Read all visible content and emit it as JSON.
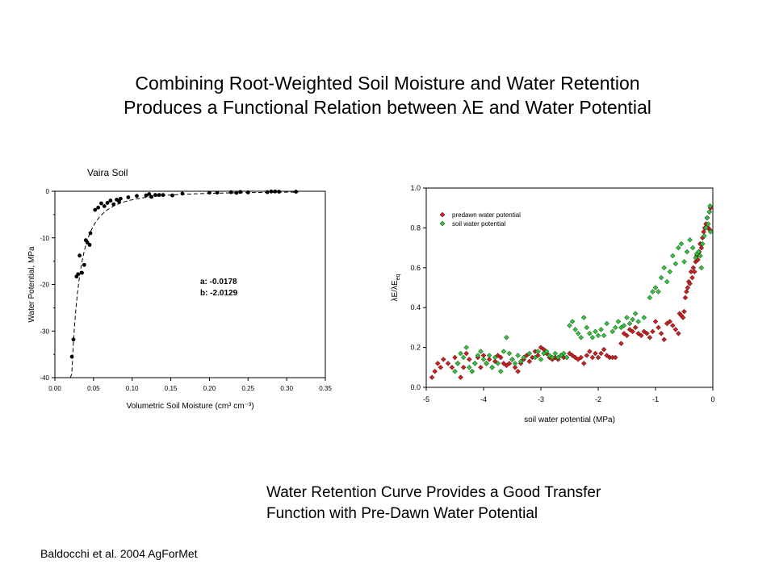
{
  "title": {
    "line1": "Combining Root-Weighted Soil Moisture and Water Retention",
    "line2": "Produces a Functional Relation between λE and Water Potential"
  },
  "subtitle": {
    "line1": "Water Retention Curve Provides a Good Transfer",
    "line2": "Function with Pre-Dawn Water Potential"
  },
  "citation": "Baldocchi et al. 2004 AgForMet",
  "colors": {
    "predawn": "#cc1f1f",
    "soil": "#2fc23a",
    "marker_edge": "#000000"
  },
  "chart_data": [
    {
      "type": "scatter",
      "title": "Vaira Soil",
      "xlabel_html": "Volumetric Soil Moisture (cm³ cm⁻³)",
      "ylabel": "Water Potential, MPa",
      "xlim": [
        0,
        0.35
      ],
      "ylim": [
        -40,
        0
      ],
      "xticks": [
        "0.00",
        "0.05",
        "0.10",
        "0.15",
        "0.20",
        "0.25",
        "0.30",
        "0.35"
      ],
      "yticks": [
        "0",
        "-10",
        "-20",
        "-30",
        "-40"
      ],
      "annotation": {
        "a": "a:  -0.0178",
        "b": "b:  -2.0129"
      },
      "fit": {
        "a": -0.0178,
        "b": -2.0129,
        "style": "dashed"
      },
      "points": [
        [
          0.022,
          -35.5
        ],
        [
          0.024,
          -31.8
        ],
        [
          0.028,
          -18.3
        ],
        [
          0.03,
          -17.8
        ],
        [
          0.032,
          -13.8
        ],
        [
          0.035,
          -17.5
        ],
        [
          0.038,
          -15.8
        ],
        [
          0.04,
          -10.5
        ],
        [
          0.042,
          -11.0
        ],
        [
          0.045,
          -11.5
        ],
        [
          0.046,
          -9.0
        ],
        [
          0.052,
          -4.0
        ],
        [
          0.056,
          -3.5
        ],
        [
          0.06,
          -2.6
        ],
        [
          0.064,
          -3.2
        ],
        [
          0.068,
          -2.5
        ],
        [
          0.072,
          -2.0
        ],
        [
          0.076,
          -2.8
        ],
        [
          0.08,
          -1.8
        ],
        [
          0.083,
          -2.2
        ],
        [
          0.085,
          -1.6
        ],
        [
          0.095,
          -1.3
        ],
        [
          0.106,
          -1.0
        ],
        [
          0.118,
          -0.9
        ],
        [
          0.122,
          -0.6
        ],
        [
          0.125,
          -1.2
        ],
        [
          0.13,
          -0.8
        ],
        [
          0.135,
          -0.8
        ],
        [
          0.14,
          -0.8
        ],
        [
          0.152,
          -0.9
        ],
        [
          0.165,
          -0.5
        ],
        [
          0.2,
          -0.3
        ],
        [
          0.21,
          -0.3
        ],
        [
          0.228,
          -0.2
        ],
        [
          0.235,
          -0.35
        ],
        [
          0.24,
          -0.15
        ],
        [
          0.25,
          -0.25
        ],
        [
          0.275,
          -0.2
        ],
        [
          0.28,
          -0.05
        ],
        [
          0.285,
          -0.05
        ],
        [
          0.29,
          -0.1
        ],
        [
          0.312,
          -0.1
        ]
      ]
    },
    {
      "type": "scatter",
      "ylabel": "λE/λE_eq",
      "xlabel": "soil water potential (MPa)",
      "xlim": [
        -5,
        0
      ],
      "ylim": [
        0,
        1.0
      ],
      "xticks": [
        "-5",
        "-4",
        "-3",
        "-2",
        "-1",
        "0"
      ],
      "yticks": [
        "0.0",
        "0.2",
        "0.4",
        "0.6",
        "0.8",
        "1.0"
      ],
      "legend_position": "top-left",
      "series": [
        {
          "name": "predawn water potential",
          "points": [
            [
              -4.9,
              0.05
            ],
            [
              -4.85,
              0.08
            ],
            [
              -4.8,
              0.12
            ],
            [
              -4.75,
              0.1
            ],
            [
              -4.7,
              0.14
            ],
            [
              -4.62,
              0.12
            ],
            [
              -4.55,
              0.1
            ],
            [
              -4.5,
              0.15
            ],
            [
              -4.45,
              0.12
            ],
            [
              -4.4,
              0.05
            ],
            [
              -4.35,
              0.1
            ],
            [
              -4.3,
              0.17
            ],
            [
              -4.25,
              0.14
            ],
            [
              -4.2,
              0.08
            ],
            [
              -4.15,
              0.12
            ],
            [
              -4.1,
              0.15
            ],
            [
              -4.05,
              0.1
            ],
            [
              -4.0,
              0.16
            ],
            [
              -3.95,
              0.12
            ],
            [
              -3.9,
              0.14
            ],
            [
              -3.85,
              0.1
            ],
            [
              -3.8,
              0.13
            ],
            [
              -3.75,
              0.16
            ],
            [
              -3.7,
              0.15
            ],
            [
              -3.65,
              0.12
            ],
            [
              -3.6,
              0.11
            ],
            [
              -3.55,
              0.12
            ],
            [
              -3.5,
              0.14
            ],
            [
              -3.45,
              0.1
            ],
            [
              -3.4,
              0.08
            ],
            [
              -3.35,
              0.12
            ],
            [
              -3.3,
              0.14
            ],
            [
              -3.25,
              0.16
            ],
            [
              -3.2,
              0.13
            ],
            [
              -3.15,
              0.15
            ],
            [
              -3.1,
              0.18
            ],
            [
              -3.05,
              0.16
            ],
            [
              -3.0,
              0.2
            ],
            [
              -2.95,
              0.19
            ],
            [
              -2.9,
              0.17
            ],
            [
              -2.85,
              0.15
            ],
            [
              -2.8,
              0.14
            ],
            [
              -2.75,
              0.15
            ],
            [
              -2.7,
              0.14
            ],
            [
              -2.65,
              0.16
            ],
            [
              -2.6,
              0.15
            ],
            [
              -2.55,
              0.15
            ],
            [
              -2.5,
              0.17
            ],
            [
              -2.45,
              0.16
            ],
            [
              -2.4,
              0.15
            ],
            [
              -2.35,
              0.14
            ],
            [
              -2.3,
              0.15
            ],
            [
              -2.25,
              0.12
            ],
            [
              -2.2,
              0.16
            ],
            [
              -2.15,
              0.18
            ],
            [
              -2.1,
              0.15
            ],
            [
              -2.05,
              0.17
            ],
            [
              -2.0,
              0.15
            ],
            [
              -1.95,
              0.17
            ],
            [
              -1.9,
              0.19
            ],
            [
              -1.85,
              0.16
            ],
            [
              -1.8,
              0.15
            ],
            [
              -1.75,
              0.15
            ],
            [
              -1.7,
              0.15
            ],
            [
              -1.6,
              0.22
            ],
            [
              -1.55,
              0.27
            ],
            [
              -1.5,
              0.26
            ],
            [
              -1.45,
              0.29
            ],
            [
              -1.4,
              0.28
            ],
            [
              -1.35,
              0.3
            ],
            [
              -1.3,
              0.27
            ],
            [
              -1.25,
              0.26
            ],
            [
              -1.2,
              0.28
            ],
            [
              -1.15,
              0.27
            ],
            [
              -1.1,
              0.25
            ],
            [
              -1.05,
              0.28
            ],
            [
              -1.0,
              0.33
            ],
            [
              -0.95,
              0.3
            ],
            [
              -0.9,
              0.27
            ],
            [
              -0.85,
              0.24
            ],
            [
              -0.8,
              0.32
            ],
            [
              -0.75,
              0.33
            ],
            [
              -0.7,
              0.31
            ],
            [
              -0.65,
              0.29
            ],
            [
              -0.6,
              0.27
            ],
            [
              -0.58,
              0.37
            ],
            [
              -0.55,
              0.36
            ],
            [
              -0.52,
              0.35
            ],
            [
              -0.5,
              0.38
            ],
            [
              -0.48,
              0.45
            ],
            [
              -0.46,
              0.48
            ],
            [
              -0.44,
              0.5
            ],
            [
              -0.42,
              0.53
            ],
            [
              -0.4,
              0.52
            ],
            [
              -0.38,
              0.58
            ],
            [
              -0.36,
              0.55
            ],
            [
              -0.34,
              0.6
            ],
            [
              -0.32,
              0.58
            ],
            [
              -0.3,
              0.63
            ],
            [
              -0.28,
              0.66
            ],
            [
              -0.26,
              0.64
            ],
            [
              -0.24,
              0.68
            ],
            [
              -0.22,
              0.72
            ],
            [
              -0.2,
              0.7
            ],
            [
              -0.18,
              0.75
            ],
            [
              -0.16,
              0.78
            ],
            [
              -0.14,
              0.8
            ],
            [
              -0.12,
              0.82
            ],
            [
              -0.1,
              0.85
            ],
            [
              -0.08,
              0.8
            ],
            [
              -0.06,
              0.88
            ],
            [
              -0.05,
              0.79
            ],
            [
              -0.04,
              0.9
            ]
          ]
        },
        {
          "name": "soil water potential",
          "points": [
            [
              -4.5,
              0.08
            ],
            [
              -4.45,
              0.12
            ],
            [
              -4.4,
              0.17
            ],
            [
              -4.35,
              0.15
            ],
            [
              -4.3,
              0.2
            ],
            [
              -4.25,
              0.1
            ],
            [
              -4.2,
              0.08
            ],
            [
              -4.15,
              0.12
            ],
            [
              -4.1,
              0.16
            ],
            [
              -4.05,
              0.18
            ],
            [
              -4.0,
              0.14
            ],
            [
              -3.95,
              0.12
            ],
            [
              -3.9,
              0.16
            ],
            [
              -3.85,
              0.1
            ],
            [
              -3.8,
              0.15
            ],
            [
              -3.75,
              0.12
            ],
            [
              -3.7,
              0.08
            ],
            [
              -3.65,
              0.18
            ],
            [
              -3.6,
              0.25
            ],
            [
              -3.55,
              0.17
            ],
            [
              -3.5,
              0.14
            ],
            [
              -3.45,
              0.12
            ],
            [
              -3.4,
              0.16
            ],
            [
              -3.35,
              0.13
            ],
            [
              -3.3,
              0.15
            ],
            [
              -3.2,
              0.17
            ],
            [
              -3.1,
              0.15
            ],
            [
              -3.05,
              0.18
            ],
            [
              -3.0,
              0.14
            ],
            [
              -2.95,
              0.17
            ],
            [
              -2.9,
              0.18
            ],
            [
              -2.85,
              0.16
            ],
            [
              -2.8,
              0.15
            ],
            [
              -2.75,
              0.17
            ],
            [
              -2.7,
              0.15
            ],
            [
              -2.65,
              0.16
            ],
            [
              -2.6,
              0.17
            ],
            [
              -2.55,
              0.15
            ],
            [
              -2.5,
              0.31
            ],
            [
              -2.45,
              0.33
            ],
            [
              -2.4,
              0.29
            ],
            [
              -2.35,
              0.27
            ],
            [
              -2.3,
              0.25
            ],
            [
              -2.25,
              0.35
            ],
            [
              -2.2,
              0.3
            ],
            [
              -2.15,
              0.27
            ],
            [
              -2.1,
              0.25
            ],
            [
              -2.05,
              0.28
            ],
            [
              -2.0,
              0.26
            ],
            [
              -1.95,
              0.29
            ],
            [
              -1.9,
              0.26
            ],
            [
              -1.85,
              0.32
            ],
            [
              -1.75,
              0.28
            ],
            [
              -1.7,
              0.3
            ],
            [
              -1.65,
              0.33
            ],
            [
              -1.6,
              0.3
            ],
            [
              -1.55,
              0.31
            ],
            [
              -1.5,
              0.35
            ],
            [
              -1.45,
              0.32
            ],
            [
              -1.4,
              0.34
            ],
            [
              -1.35,
              0.37
            ],
            [
              -1.3,
              0.33
            ],
            [
              -1.2,
              0.35
            ],
            [
              -1.1,
              0.45
            ],
            [
              -1.05,
              0.48
            ],
            [
              -1.0,
              0.5
            ],
            [
              -0.95,
              0.48
            ],
            [
              -0.9,
              0.55
            ],
            [
              -0.85,
              0.6
            ],
            [
              -0.8,
              0.53
            ],
            [
              -0.75,
              0.58
            ],
            [
              -0.7,
              0.66
            ],
            [
              -0.65,
              0.62
            ],
            [
              -0.6,
              0.7
            ],
            [
              -0.55,
              0.72
            ],
            [
              -0.5,
              0.63
            ],
            [
              -0.45,
              0.68
            ],
            [
              -0.4,
              0.74
            ],
            [
              -0.35,
              0.7
            ],
            [
              -0.3,
              0.65
            ],
            [
              -0.28,
              0.67
            ],
            [
              -0.25,
              0.68
            ],
            [
              -0.22,
              0.66
            ],
            [
              -0.2,
              0.6
            ],
            [
              -0.18,
              0.72
            ],
            [
              -0.15,
              0.76
            ],
            [
              -0.12,
              0.8
            ],
            [
              -0.1,
              0.85
            ],
            [
              -0.08,
              0.82
            ],
            [
              -0.06,
              0.88
            ],
            [
              -0.05,
              0.91
            ],
            [
              -0.04,
              0.78
            ]
          ]
        }
      ]
    }
  ]
}
